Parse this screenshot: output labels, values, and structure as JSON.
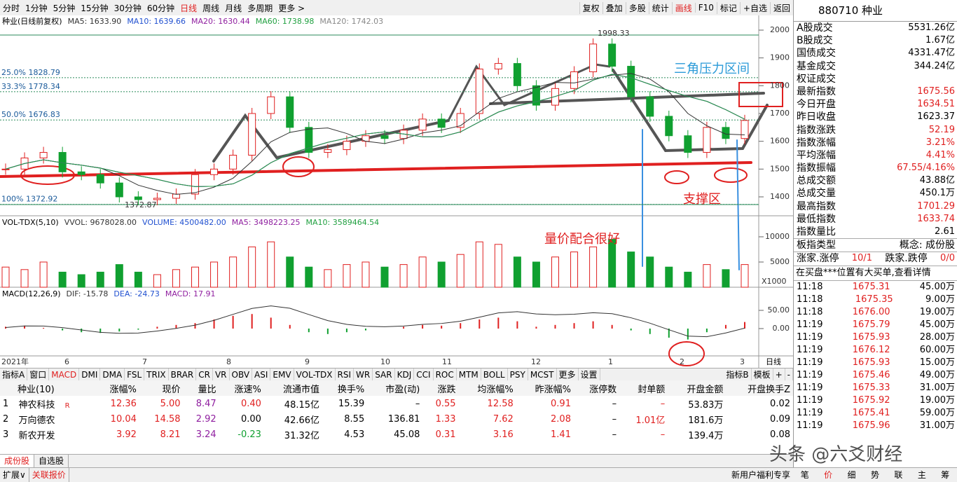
{
  "toolbar": {
    "periods": [
      "分时",
      "1分钟",
      "5分钟",
      "15分钟",
      "30分钟",
      "60分钟",
      "日线",
      "周线",
      "月线",
      "多周期",
      "更多 >"
    ],
    "tools": [
      "复权",
      "叠加",
      "多股",
      "统计",
      "画线",
      "F10",
      "标记",
      "+自选",
      "返回"
    ]
  },
  "price_panel": {
    "legend": [
      "种业(日线前复权)",
      "MA5: 1633.90",
      "MA10: 1639.66",
      "MA20: 1630.44",
      "MA60: 1738.98",
      "MA120: 1742.03"
    ],
    "yticks": [
      2000,
      1900,
      1800,
      1700,
      1600,
      1500,
      1400
    ],
    "fib_labels": [
      "25.0% 1828.79",
      "33.3% 1778.34",
      "50.0% 1676.83",
      "100% 1372.92"
    ],
    "high_label": "1998.33",
    "low_label": "1372.87",
    "closes": [
      1500,
      1540,
      1560,
      1490,
      1480,
      1450,
      1400,
      1390,
      1395,
      1410,
      1480,
      1500,
      1550,
      1700,
      1760,
      1650,
      1560,
      1570,
      1600,
      1620,
      1610,
      1640,
      1680,
      1650,
      1700,
      1860,
      1880,
      1800,
      1730,
      1790,
      1850,
      1950,
      1870,
      1760,
      1690,
      1620,
      1560,
      1650,
      1610,
      1675
    ]
  },
  "annotations": {
    "pressure": "三角压力区间",
    "support": "支撑区",
    "volume_price": "量价配合很好"
  },
  "volume_panel": {
    "legend": [
      "VOL-TDX(5,10)",
      "VVOL: 9678028.00",
      "VOLUME: 4500482.00",
      "MA5: 3498223.25",
      "MA10: 3589464.54"
    ],
    "yticks": [
      10000,
      5000
    ],
    "unit": "X1000",
    "values": [
      4000,
      3500,
      5000,
      3000,
      2500,
      3000,
      4500,
      3000,
      2500,
      3500,
      4000,
      5000,
      6000,
      8000,
      9000,
      6000,
      4000,
      3500,
      4500,
      5000,
      4000,
      4500,
      6000,
      5000,
      6500,
      9000,
      8500,
      6000,
      5000,
      6000,
      7000,
      8000,
      9500,
      7000,
      6000,
      4000,
      3000,
      4500,
      3500,
      4500
    ]
  },
  "macd_panel": {
    "legend": [
      "MACD(12,26,9)",
      "DIF: -15.78",
      "DEA: -24.73",
      "MACD: 17.91"
    ],
    "yticks": [
      {
        "value": 50,
        "label": "50.00"
      },
      {
        "value": 0,
        "label": "0.00"
      }
    ],
    "values": [
      5,
      8,
      2,
      -5,
      -10,
      -12,
      -8,
      -3,
      5,
      10,
      15,
      25,
      35,
      40,
      30,
      10,
      -10,
      -15,
      -10,
      -5,
      0,
      5,
      10,
      8,
      15,
      25,
      30,
      20,
      5,
      10,
      15,
      20,
      10,
      -5,
      -15,
      -25,
      -30,
      -10,
      10,
      18
    ]
  },
  "x_axis": {
    "labels": [
      "2021年",
      "6",
      "7",
      "8",
      "9",
      "10",
      "11",
      "12",
      "1",
      "2",
      "3"
    ],
    "period": "日线"
  },
  "indicator_tabs": {
    "left": [
      "指标A",
      "窗口",
      "MACD",
      "DMI",
      "DMA",
      "FSL",
      "TRIX",
      "BRAR",
      "CR",
      "VR",
      "OBV",
      "ASI",
      "EMV",
      "VOL-TDX",
      "RSI",
      "WR",
      "SAR",
      "KDJ",
      "CCI",
      "ROC",
      "MTM",
      "BOLL",
      "PSY",
      "MCST",
      "更多",
      "设置"
    ],
    "right": [
      "指标B",
      "模板",
      "+",
      "-"
    ]
  },
  "table": {
    "header": [
      "种业(10)",
      "涨幅%",
      "现价",
      "量比",
      "涨速%",
      "流通市值",
      "换手%",
      "市盈(动)",
      "涨跌",
      "均涨幅%",
      "昨涨幅%",
      "涨停数",
      "封单额",
      "开盘金额",
      "开盘换手Z"
    ],
    "rows": [
      {
        "cells": [
          "1",
          "神农科技",
          "12.36",
          "5.00",
          "8.47",
          "0.40",
          "48.15亿",
          "15.39",
          "–",
          "0.55",
          "12.58",
          "0.91",
          "–",
          "–",
          "53.83万",
          "0.02"
        ],
        "flag": "R"
      },
      {
        "cells": [
          "2",
          "万向德农",
          "10.04",
          "14.58",
          "2.92",
          "0.00",
          "42.66亿",
          "8.55",
          "136.81",
          "1.33",
          "7.62",
          "2.08",
          "–",
          "1.01亿",
          "181.6万",
          "0.09"
        ]
      },
      {
        "cells": [
          "3",
          "新农开发",
          "3.92",
          "8.21",
          "3.24",
          "-0.23",
          "31.32亿",
          "4.53",
          "45.08",
          "0.31",
          "3.16",
          "1.41",
          "–",
          "–",
          "139.4万",
          "0.08"
        ]
      }
    ]
  },
  "bottom_tabs": {
    "upper": [
      "成份股",
      "自选股"
    ],
    "lower": [
      "扩展∨",
      "关联报价"
    ],
    "right_note": "新用户福利专享",
    "right_tabs": [
      "笔",
      "价",
      "细",
      "势",
      "联",
      "主",
      "筹"
    ]
  },
  "side": {
    "title": "880710 种业",
    "stats": [
      {
        "label": "A股成交",
        "value": "5531.26亿"
      },
      {
        "label": "B股成交",
        "value": "1.67亿"
      },
      {
        "label": "国债成交",
        "value": "4331.47亿"
      },
      {
        "label": "基金成交",
        "value": "344.24亿"
      },
      {
        "label": "权证成交"
      },
      {
        "label": "最新指数",
        "value": "1675.56"
      },
      {
        "label": "今日开盘",
        "value": "1634.51"
      },
      {
        "label": "昨日收盘",
        "value": "1623.37"
      },
      {
        "label": "指数涨跌",
        "value": "52.19"
      },
      {
        "label": "指数涨幅",
        "value": "3.21%"
      },
      {
        "label": "平均涨幅",
        "value": "4.41%"
      },
      {
        "label": "指数振幅",
        "value": "67.55/4.16%"
      },
      {
        "label": "总成交额",
        "value": "43.88亿"
      },
      {
        "label": "总成交量",
        "value": "450.1万"
      },
      {
        "label": "最高指数",
        "value": "1701.29"
      },
      {
        "label": "最低指数",
        "value": "1633.74"
      },
      {
        "label": "指数量比",
        "value": "2.61"
      }
    ],
    "type_label": "板指类型",
    "type_value": "概念: 成份股",
    "up_label": "涨家.涨停",
    "up_value": "10/1",
    "down_label": "跌家.跌停",
    "down_value": "0/0",
    "notice": "在买盘***位置有大买单,查看详情",
    "ticks": [
      [
        "11:18",
        "1675.31",
        "45.00万"
      ],
      [
        "11:18",
        "1675.35",
        "9.00万"
      ],
      [
        "11:18",
        "1676.00",
        "19.00万"
      ],
      [
        "11:19",
        "1675.79",
        "45.00万"
      ],
      [
        "11:19",
        "1675.93",
        "28.00万"
      ],
      [
        "11:19",
        "1676.12",
        "60.00万"
      ],
      [
        "11:19",
        "1675.93",
        "15.00万"
      ],
      [
        "11:19",
        "1675.46",
        "49.00万"
      ],
      [
        "11:19",
        "1675.33",
        "31.00万"
      ],
      [
        "11:19",
        "1675.92",
        "19.00万"
      ],
      [
        "11:19",
        "1675.41",
        "59.00万"
      ],
      [
        "11:19",
        "1675.96",
        "31.00万"
      ]
    ]
  },
  "watermark": "头条 @六爻财经"
}
